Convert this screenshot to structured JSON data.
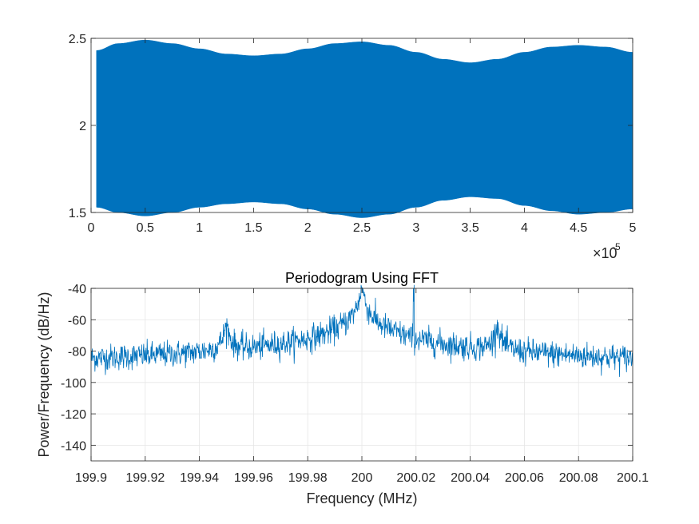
{
  "chart_data": [
    {
      "type": "area",
      "title": "",
      "xlabel": "",
      "ylabel": "",
      "xlim": [
        0,
        5
      ],
      "ylim": [
        1.5,
        2.5
      ],
      "x_exponent_label": "×10",
      "x_exponent_power": "-5",
      "xticks": [
        "0",
        "0.5",
        "1",
        "1.5",
        "2",
        "2.5",
        "3",
        "3.5",
        "4",
        "4.5",
        "5"
      ],
      "yticks": [
        "1.5",
        "2",
        "2.5"
      ],
      "grid": false,
      "color": "#0072BD",
      "series": [
        {
          "x": [
            0.05,
            0.25,
            0.5,
            0.75,
            1.0,
            1.25,
            1.5,
            1.75,
            2.0,
            2.25,
            2.5,
            2.75,
            3.0,
            3.25,
            3.5,
            3.75,
            4.0,
            4.25,
            4.5,
            4.75,
            5.0
          ],
          "upper": [
            2.43,
            2.47,
            2.49,
            2.47,
            2.44,
            2.41,
            2.4,
            2.41,
            2.44,
            2.47,
            2.48,
            2.46,
            2.42,
            2.38,
            2.36,
            2.38,
            2.42,
            2.45,
            2.46,
            2.45,
            2.42
          ],
          "lower": [
            1.53,
            1.5,
            1.48,
            1.5,
            1.53,
            1.55,
            1.56,
            1.55,
            1.52,
            1.49,
            1.47,
            1.49,
            1.53,
            1.57,
            1.59,
            1.58,
            1.54,
            1.51,
            1.49,
            1.5,
            1.52
          ]
        }
      ]
    },
    {
      "type": "line",
      "title": "Periodogram Using FFT",
      "xlabel": "Frequency (MHz)",
      "ylabel": "Power/Frequency (dB/Hz)",
      "xlim": [
        199.9,
        200.1
      ],
      "ylim": [
        -150,
        -40
      ],
      "xticks": [
        "199.9",
        "199.92",
        "199.94",
        "199.96",
        "199.98",
        "200",
        "200.02",
        "200.04",
        "200.06",
        "200.08",
        "200.1"
      ],
      "yticks": [
        "-40",
        "-60",
        "-80",
        "-100",
        "-120",
        "-140"
      ],
      "grid": true,
      "color": "#0072BD",
      "noise_floor_db": -90,
      "peaks": [
        {
          "x": 199.95,
          "y": -64
        },
        {
          "x": 200.0,
          "y": -39
        },
        {
          "x": 200.019,
          "y": -45
        },
        {
          "x": 200.05,
          "y": -64
        }
      ]
    }
  ]
}
